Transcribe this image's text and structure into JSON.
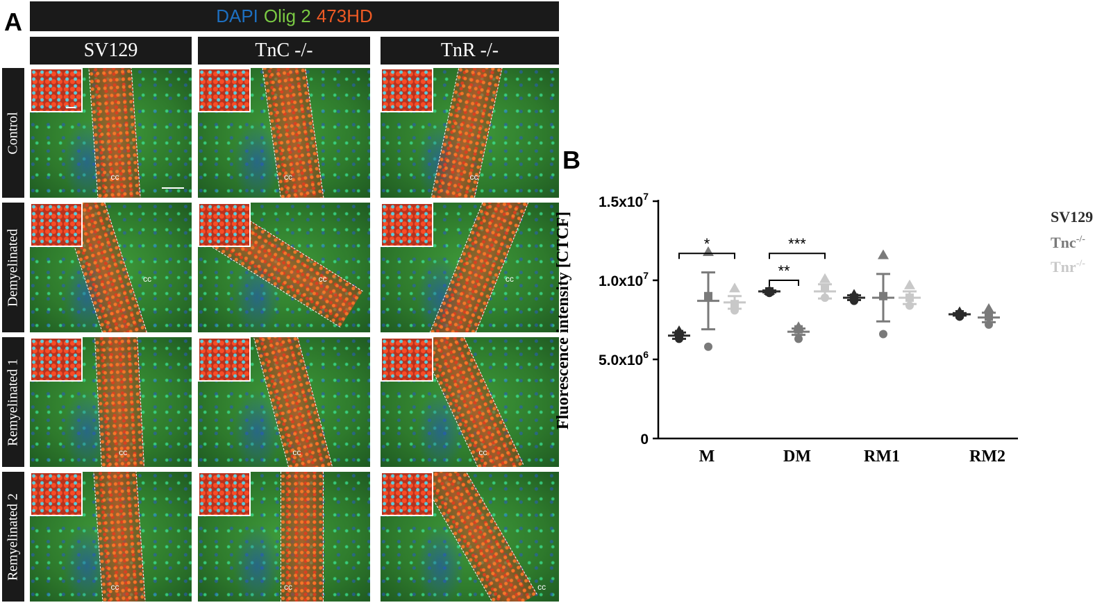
{
  "panel_a": {
    "letter": "A",
    "stain_labels": [
      {
        "text": "DAPI",
        "color": "#1d6fc0"
      },
      {
        "text": "Olig 2",
        "color": "#7ac943"
      },
      {
        "text": "473HD",
        "color": "#ee5a24"
      }
    ],
    "columns": [
      "SV129",
      "TnC -/-",
      "TnR -/-"
    ],
    "rows": [
      "Control",
      "Demyelinated",
      "Remyelinated  1",
      "Remyelinated 2"
    ],
    "region_label": "cc"
  },
  "panel_b": {
    "letter": "B",
    "legend": [
      {
        "base": "SV129",
        "sup": "",
        "color": "#2b2b2b"
      },
      {
        "base": "Tnc",
        "sup": "-/-",
        "color": "#7a7a7a"
      },
      {
        "base": "Tnr",
        "sup": "-/-",
        "color": "#c8c8c8"
      }
    ],
    "significance": [
      "*",
      "***",
      "**"
    ]
  },
  "chart_data": {
    "type": "scatter",
    "title": "",
    "ylabel": "Fluorescence intensity [CTCF]",
    "xlabel": "",
    "categories": [
      "M",
      "DM",
      "RM1",
      "RM2"
    ],
    "ylim": [
      0,
      15000000
    ],
    "yticks": [
      {
        "value": 0,
        "label": "0",
        "sup": ""
      },
      {
        "value": 5000000,
        "label": "5.0x10",
        "sup": "6"
      },
      {
        "value": 10000000,
        "label": "1.0x10",
        "sup": "7"
      },
      {
        "value": 15000000,
        "label": "1.5x10",
        "sup": "7"
      }
    ],
    "series": [
      {
        "name": "SV129",
        "color": "#2b2b2b",
        "marker": "circle",
        "points": {
          "M": [
            6300000,
            6600000,
            6800000
          ],
          "DM": [
            9200000,
            9300000,
            9350000
          ],
          "RM1": [
            8700000,
            8900000,
            9100000
          ],
          "RM2": [
            7700000,
            7850000,
            8000000
          ]
        },
        "mean": {
          "M": 6500000,
          "DM": 9300000,
          "RM1": 8900000,
          "RM2": 7850000
        },
        "sem": {
          "M": 200000,
          "DM": 60000,
          "RM1": 150000,
          "RM2": 80000
        }
      },
      {
        "name": "Tnc-/-",
        "color": "#7a7a7a",
        "marker": "mixed",
        "points": {
          "M": [
            5800000,
            9000000,
            11800000
          ],
          "DM": [
            6300000,
            6900000,
            7050000
          ],
          "RM1": [
            6600000,
            9000000,
            11600000
          ],
          "RM2": [
            7200000,
            7700000,
            8200000
          ]
        },
        "mean": {
          "M": 8700000,
          "DM": 6750000,
          "RM1": 8900000,
          "RM2": 7650000
        },
        "sem": {
          "M": 1800000,
          "DM": 200000,
          "RM1": 1500000,
          "RM2": 300000
        }
      },
      {
        "name": "Tnr-/-",
        "color": "#c8c8c8",
        "marker": "mixed",
        "points": {
          "M": [
            8100000,
            8500000,
            9500000
          ],
          "DM": [
            8900000,
            9500000,
            10100000
          ],
          "RM1": [
            8400000,
            8900000,
            9700000
          ]
        },
        "mean": {
          "M": 8600000,
          "DM": 9300000,
          "RM1": 8900000
        },
        "sem": {
          "M": 400000,
          "DM": 450000,
          "RM1": 400000
        }
      }
    ],
    "brackets": [
      {
        "from": "M-SV129",
        "to": "M-Tnr",
        "label": "*",
        "y": 11700000
      },
      {
        "from": "DM-SV129",
        "to": "DM-Tnr",
        "label": "***",
        "y": 11700000
      },
      {
        "from": "DM-SV129",
        "to": "DM-Tnc",
        "label": "**",
        "y": 10000000
      }
    ]
  }
}
